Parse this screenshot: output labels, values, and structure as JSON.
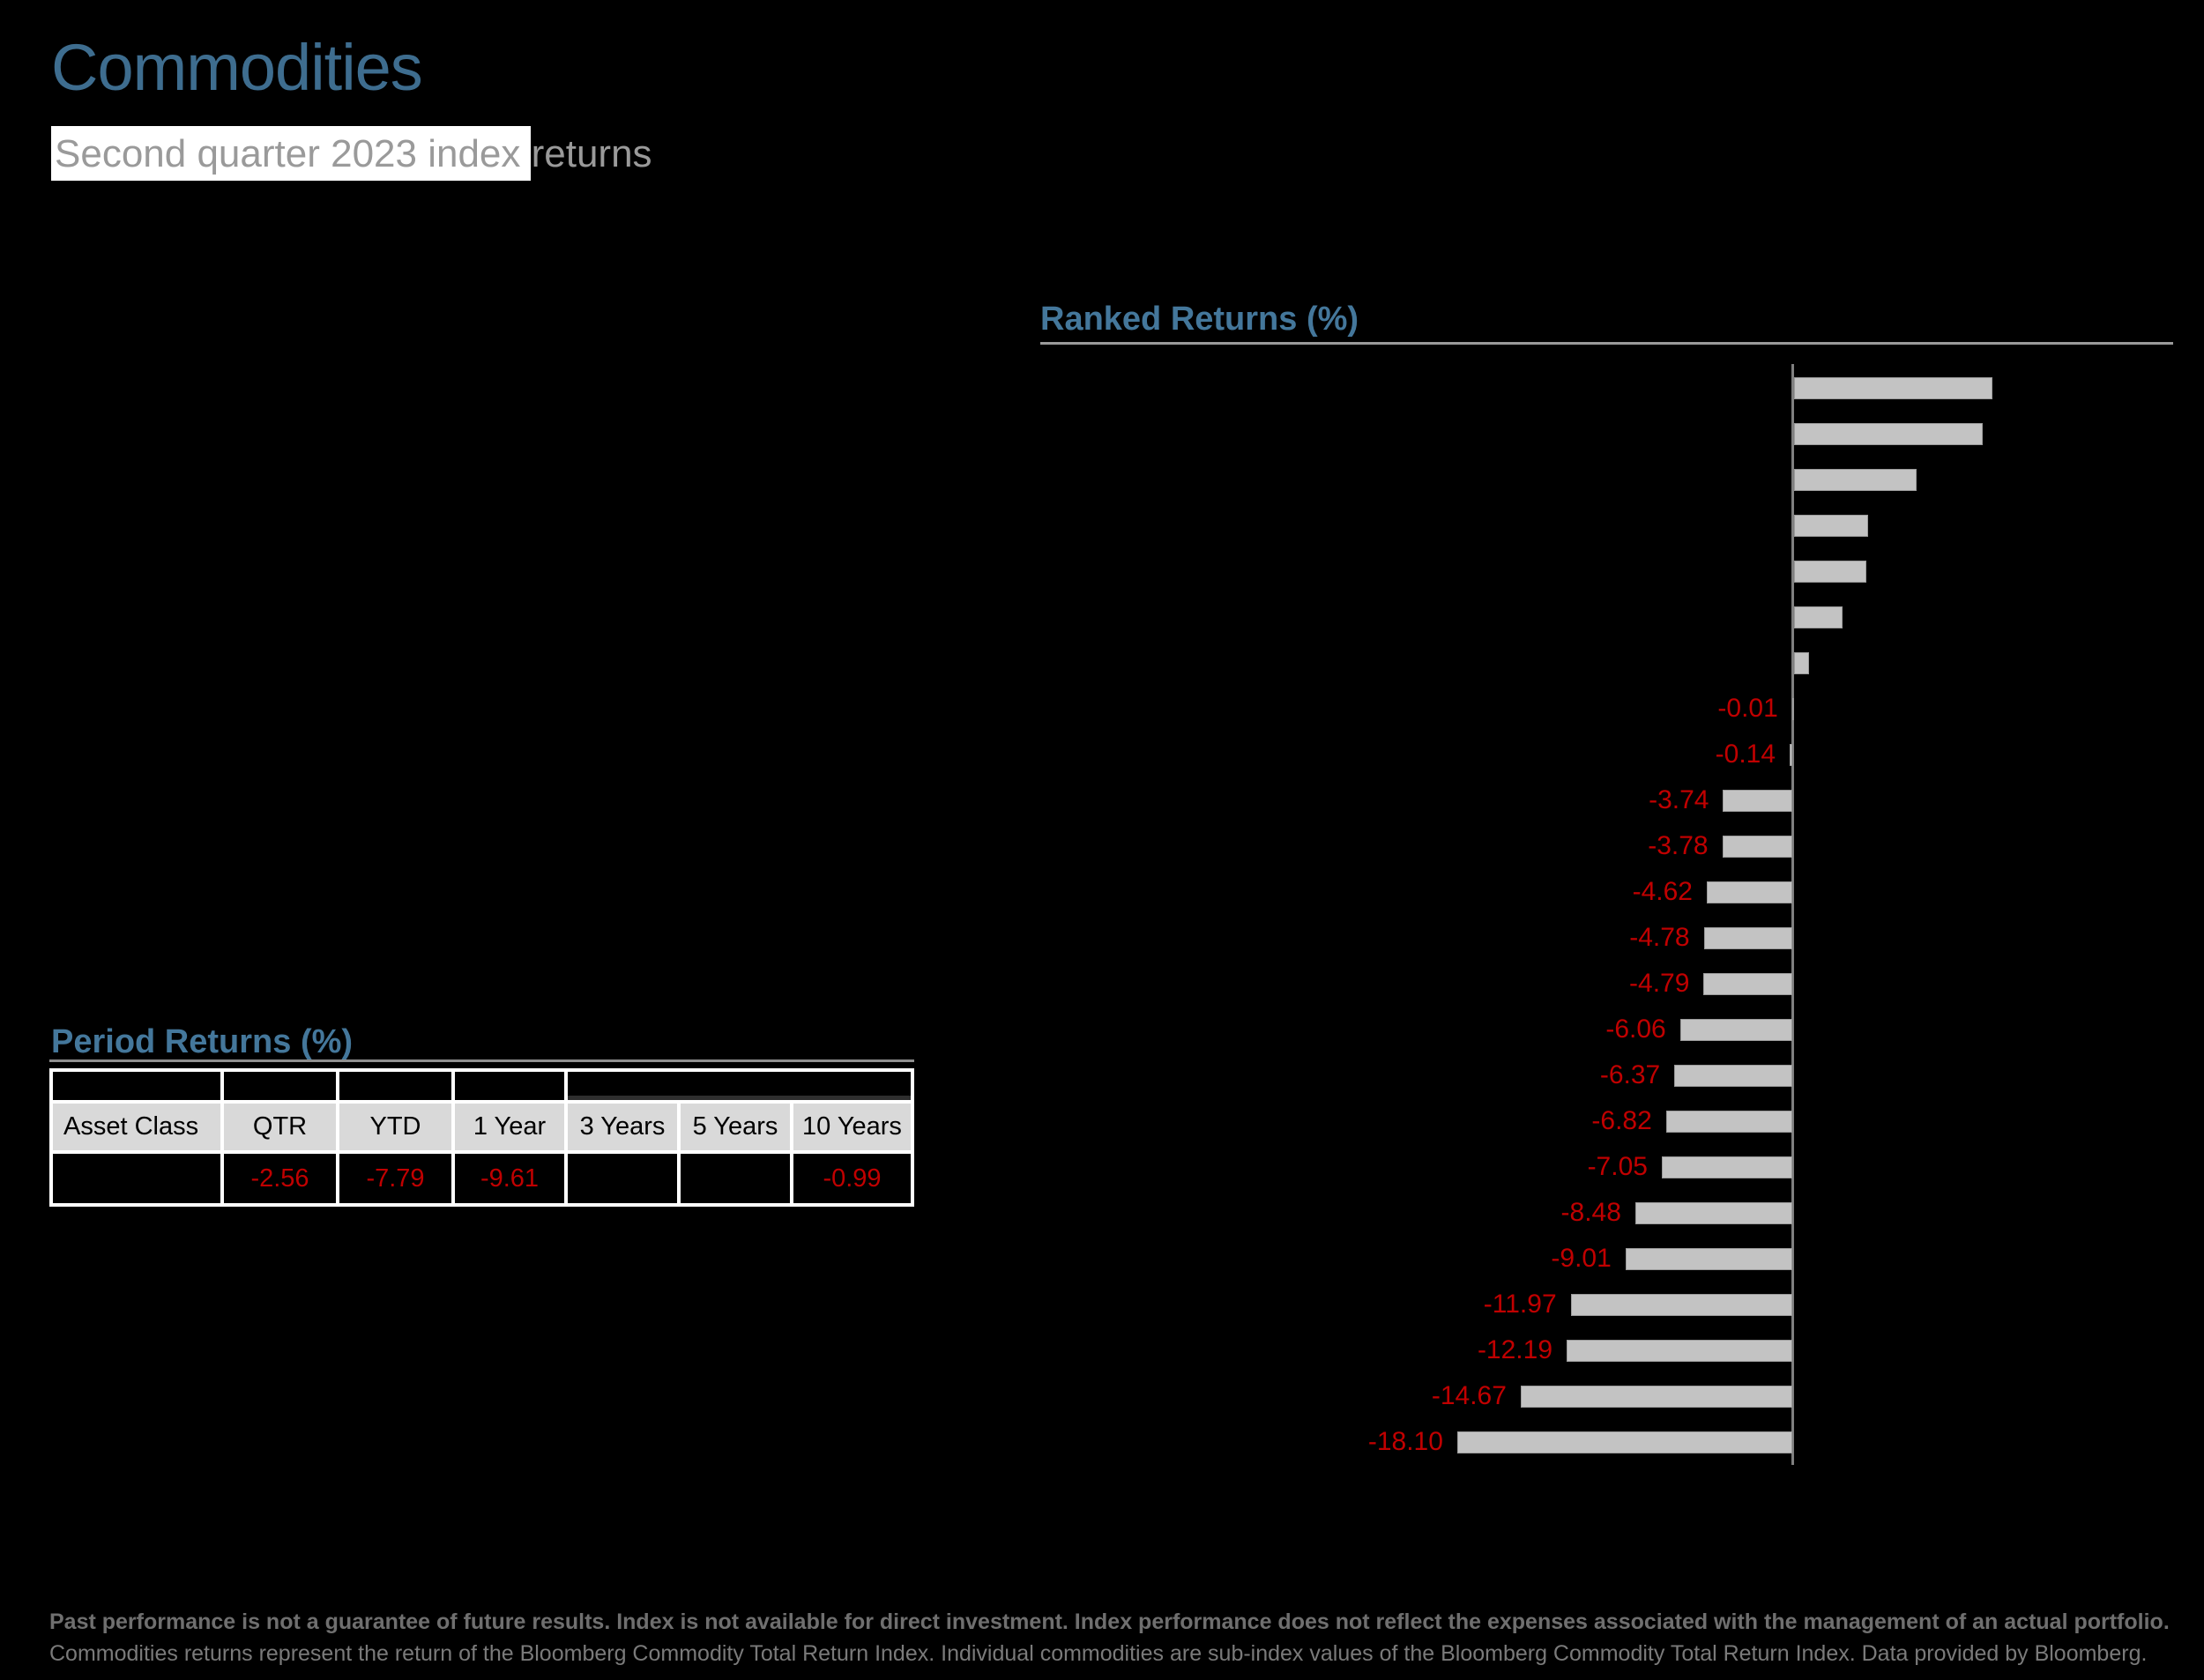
{
  "page": {
    "title": "Commodities",
    "subtitle": "Second quarter 2023 index returns"
  },
  "colors": {
    "background": "#000000",
    "title_blue": "#3E6D8F",
    "heading_blue": "#44779B",
    "subtitle_gray": "#9a9a9a",
    "subtitle_highlight": "#ffffff",
    "negative_red": "#C00000",
    "bar_fill": "#C3C3C3",
    "axis_gray": "#7f7f7f",
    "table_header_gray": "#D9D9D9",
    "footnote_gray": "#6f6f6f"
  },
  "chart_data": {
    "type": "bar",
    "orientation": "horizontal",
    "title": "Ranked Returns (%)",
    "value_labels_shown": "negative values only, in red; positive bar labels and category names are not visible on the black background",
    "xlim": [
      -20,
      12
    ],
    "bars": [
      {
        "value": 10.7,
        "label": ""
      },
      {
        "value": 10.2,
        "label": ""
      },
      {
        "value": 6.6,
        "label": ""
      },
      {
        "value": 4.0,
        "label": ""
      },
      {
        "value": 3.9,
        "label": ""
      },
      {
        "value": 2.6,
        "label": ""
      },
      {
        "value": 0.8,
        "label": ""
      },
      {
        "value": -0.01,
        "label": "-0.01"
      },
      {
        "value": -0.14,
        "label": "-0.14"
      },
      {
        "value": -3.74,
        "label": "-3.74"
      },
      {
        "value": -3.78,
        "label": "-3.78"
      },
      {
        "value": -4.62,
        "label": "-4.62"
      },
      {
        "value": -4.78,
        "label": "-4.78"
      },
      {
        "value": -4.79,
        "label": "-4.79"
      },
      {
        "value": -6.06,
        "label": "-6.06"
      },
      {
        "value": -6.37,
        "label": "-6.37"
      },
      {
        "value": -6.82,
        "label": "-6.82"
      },
      {
        "value": -7.05,
        "label": "-7.05"
      },
      {
        "value": -8.48,
        "label": "-8.48"
      },
      {
        "value": -9.01,
        "label": "-9.01"
      },
      {
        "value": -11.97,
        "label": "-11.97"
      },
      {
        "value": -12.19,
        "label": "-12.19"
      },
      {
        "value": -14.67,
        "label": "-14.67"
      },
      {
        "value": -18.1,
        "label": "-18.10"
      }
    ]
  },
  "period_returns": {
    "title": "Period Returns (%)",
    "columns": [
      "Asset Class",
      "QTR",
      "YTD",
      "1 Year",
      "3 Years",
      "5 Years",
      "10 Years"
    ],
    "row_values": [
      "",
      "-2.56",
      "-7.79",
      "-9.61",
      "",
      "",
      "-0.99"
    ]
  },
  "footer": {
    "line1": "Past performance is not a guarantee of future results. Index is not available for direct investment. Index performance does not reflect the expenses associated with the management of an actual portfolio.",
    "line2": "Commodities returns represent the return of the Bloomberg Commodity Total Return Index. Individual commodities are sub-index values of the Bloomberg Commodity Total Return Index. Data provided by Bloomberg."
  }
}
